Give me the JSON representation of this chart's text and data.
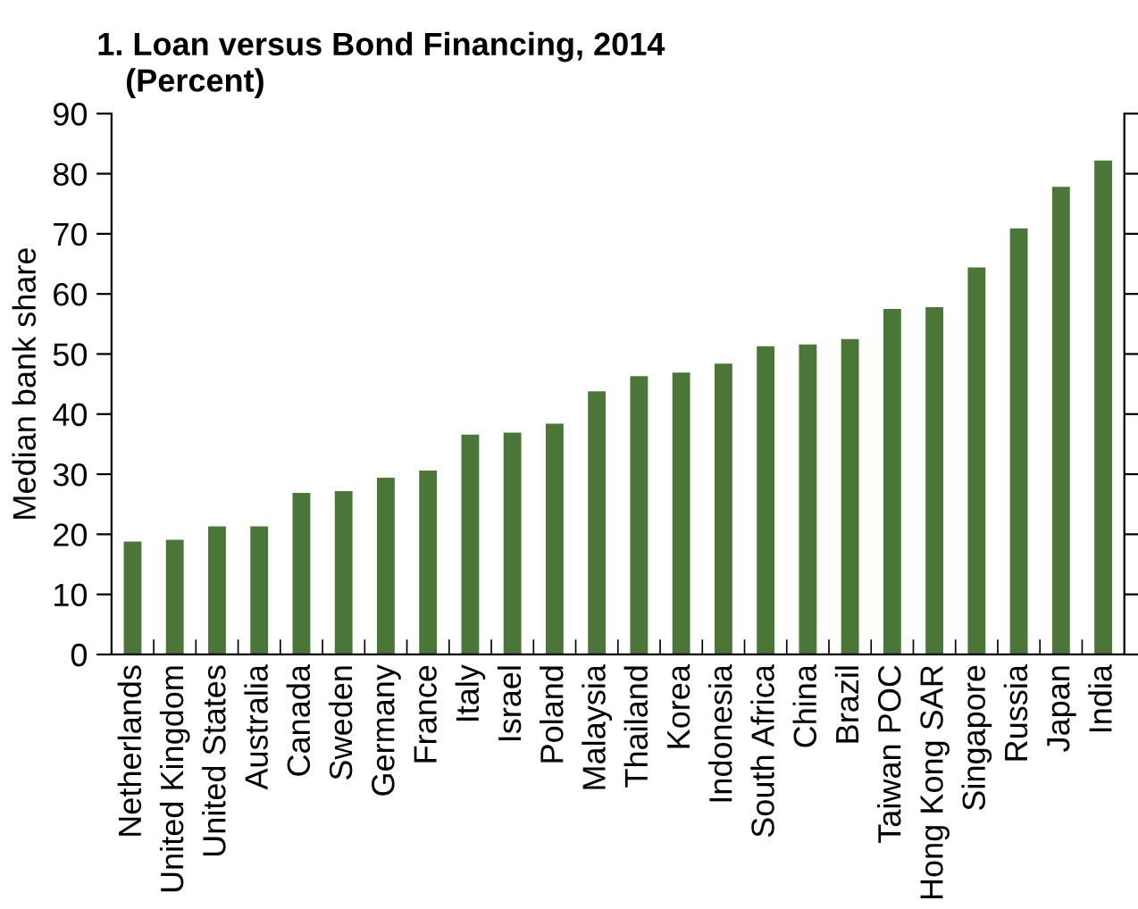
{
  "chart_data": {
    "type": "bar",
    "title": "1. Loan versus Bond Financing, 2014",
    "subtitle": "(Percent)",
    "ylabel": "Median bank share",
    "categories": [
      "Netherlands",
      "United Kingdom",
      "United States",
      "Australia",
      "Canada",
      "Sweden",
      "Germany",
      "France",
      "Italy",
      "Israel",
      "Poland",
      "Malaysia",
      "Thailand",
      "Korea",
      "Indonesia",
      "South Africa",
      "China",
      "Brazil",
      "Taiwan POC",
      "Hong Kong SAR",
      "Singapore",
      "Russia",
      "Japan",
      "India"
    ],
    "values": [
      18.8,
      19.1,
      21.3,
      21.3,
      26.9,
      27.2,
      29.4,
      30.6,
      36.6,
      36.9,
      38.4,
      43.8,
      46.3,
      46.9,
      48.4,
      51.3,
      51.6,
      52.5,
      57.5,
      57.8,
      64.4,
      70.9,
      77.8,
      82.2
    ],
    "color": "#4a7637",
    "ylim": [
      0,
      90
    ],
    "yticks": [
      0,
      10,
      20,
      30,
      40,
      50,
      60,
      70,
      80,
      90
    ],
    "grid": false,
    "legend": false
  }
}
